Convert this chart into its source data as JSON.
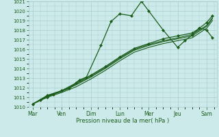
{
  "xlabel": "Pression niveau de la mer( hPa )",
  "bg_color": "#cceaea",
  "grid_color": "#aacccc",
  "line_color": "#1a5c1a",
  "marker_color": "#1a5c1a",
  "ylim": [
    1010,
    1021
  ],
  "xlim": [
    -0.15,
    6.35
  ],
  "day_labels": [
    "Mar",
    "Ven",
    "Dim",
    "Lun",
    "Mer",
    "Jeu",
    "Sam"
  ],
  "day_positions": [
    0,
    1,
    2,
    3,
    4,
    5,
    6
  ],
  "lines": [
    {
      "x": [
        0.0,
        0.25,
        0.5,
        0.7,
        1.0,
        1.25,
        1.6,
        1.85,
        2.35,
        2.7,
        3.0,
        3.4,
        3.75,
        4.0,
        4.5,
        5.0,
        5.25,
        5.5,
        5.75,
        6.0,
        6.2
      ],
      "y": [
        1010.3,
        1010.7,
        1011.0,
        1011.3,
        1011.7,
        1011.9,
        1012.8,
        1013.1,
        1016.4,
        1018.9,
        1019.7,
        1019.5,
        1021.0,
        1020.0,
        1018.0,
        1016.2,
        1016.9,
        1017.5,
        1018.2,
        1018.0,
        1017.2
      ],
      "with_markers": true
    },
    {
      "x": [
        0.0,
        0.5,
        1.0,
        1.5,
        2.0,
        2.5,
        3.0,
        3.5,
        4.0,
        4.5,
        5.0,
        5.5,
        6.0,
        6.2
      ],
      "y": [
        1010.3,
        1011.0,
        1011.5,
        1012.1,
        1012.9,
        1013.8,
        1014.8,
        1015.7,
        1016.2,
        1016.6,
        1016.9,
        1017.2,
        1018.2,
        1019.0
      ],
      "with_markers": false
    },
    {
      "x": [
        0.0,
        0.5,
        1.0,
        1.5,
        2.0,
        2.5,
        3.0,
        3.5,
        4.0,
        4.5,
        5.0,
        5.5,
        6.0,
        6.2
      ],
      "y": [
        1010.3,
        1011.1,
        1011.6,
        1012.3,
        1013.1,
        1014.0,
        1015.0,
        1015.9,
        1016.4,
        1016.8,
        1017.1,
        1017.4,
        1018.4,
        1019.2
      ],
      "with_markers": false
    },
    {
      "x": [
        0.0,
        0.5,
        1.0,
        1.5,
        2.0,
        2.5,
        3.0,
        3.5,
        4.0,
        4.5,
        5.0,
        5.5,
        6.0,
        6.2
      ],
      "y": [
        1010.3,
        1011.15,
        1011.65,
        1012.4,
        1013.2,
        1014.1,
        1015.1,
        1016.0,
        1016.5,
        1016.9,
        1017.2,
        1017.55,
        1018.5,
        1019.3
      ],
      "with_markers": false
    },
    {
      "x": [
        0.0,
        0.5,
        1.0,
        1.5,
        2.0,
        2.5,
        3.0,
        3.5,
        4.0,
        4.5,
        5.0,
        5.5,
        5.75,
        6.0,
        6.2
      ],
      "y": [
        1010.3,
        1011.2,
        1011.7,
        1012.5,
        1013.3,
        1014.2,
        1015.2,
        1016.1,
        1016.6,
        1017.1,
        1017.4,
        1017.7,
        1018.2,
        1018.8,
        1019.5
      ],
      "with_markers": true
    }
  ]
}
